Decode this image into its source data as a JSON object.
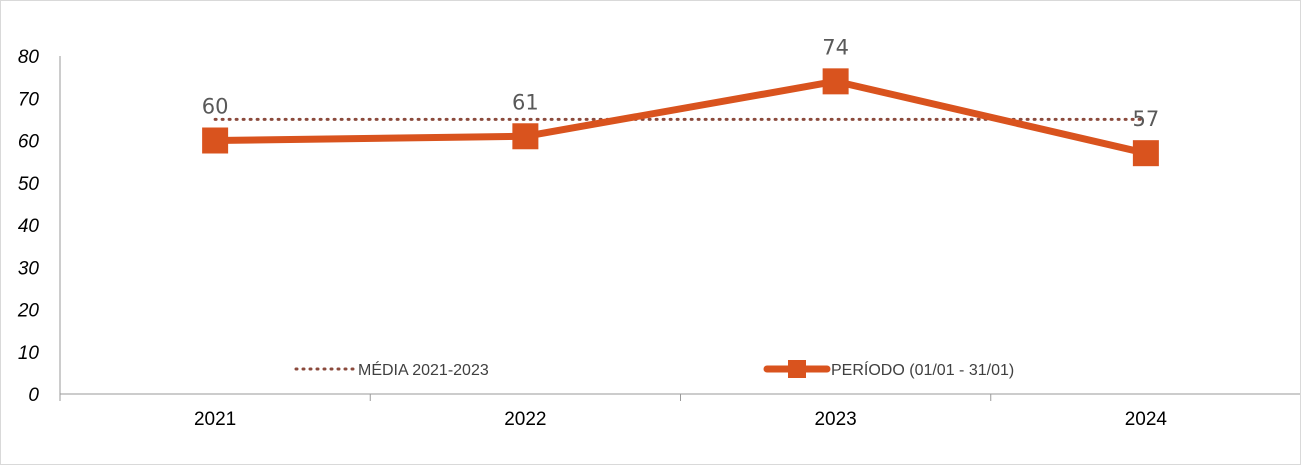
{
  "chart_data": {
    "type": "line",
    "categories": [
      "2021",
      "2022",
      "2023",
      "2024"
    ],
    "ylim": [
      0,
      80
    ],
    "yticks": [
      0,
      10,
      20,
      30,
      40,
      50,
      60,
      70,
      80
    ],
    "series": [
      {
        "name": "MÉDIA 2021-2023",
        "values": [
          65,
          65,
          65,
          65
        ],
        "color": "#8B4A3C",
        "style": "dotted"
      },
      {
        "name": "PERÍODO (01/01 - 31/01)",
        "values": [
          60,
          61,
          74,
          57
        ],
        "data_labels": [
          "60",
          "61",
          "74",
          "57"
        ],
        "color": "#D9531E",
        "style": "solid",
        "marker": "square"
      }
    ],
    "legend_position": "inside-bottom",
    "grid": false
  }
}
